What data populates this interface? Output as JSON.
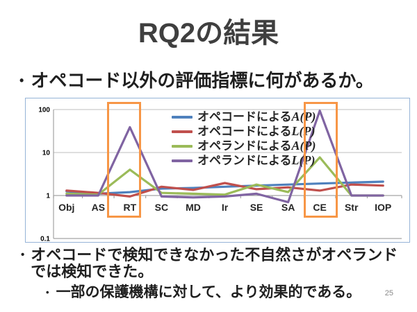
{
  "slide": {
    "title": "RQ2の結果",
    "bullet_char": "•",
    "bullet1": "オペコード以外の評価指標に何があるか。",
    "bullet2": "オペコードで検知できなかった不自然さがオペランドでは検知できた。",
    "bullet3": "一部の保護機構に対して、より効果的である。",
    "page_number": "25"
  },
  "chart_data": {
    "type": "line",
    "y_scale": "log",
    "ylim": [
      0.1,
      100
    ],
    "y_ticks": [
      "100",
      "10",
      "1",
      "0.1"
    ],
    "y_tick_values": [
      100,
      10,
      1,
      0.1
    ],
    "grid": true,
    "legend_position": "top-center-inside",
    "categories": [
      "Obj",
      "AS",
      "RT",
      "SC",
      "MD",
      "Ir",
      "SE",
      "SA",
      "CE",
      "Str",
      "IOP"
    ],
    "series": [
      {
        "name": "オペコードによるA(P)",
        "label_prefix": "オペコードによる",
        "label_metric": "A(P)",
        "color": "#4F81BD",
        "values": [
          1.25,
          1.1,
          1.2,
          1.45,
          1.5,
          1.6,
          1.7,
          1.8,
          1.9,
          2.0,
          2.1
        ]
      },
      {
        "name": "オペコードによるL(P)",
        "label_prefix": "オペコードによる",
        "label_metric": "L(P)",
        "color": "#C0504D",
        "values": [
          1.3,
          1.15,
          0.95,
          1.6,
          1.35,
          1.95,
          1.4,
          1.55,
          1.3,
          1.8,
          1.7
        ]
      },
      {
        "name": "オペランドによるA(P)",
        "label_prefix": "オペランドによる",
        "label_metric": "A(P)",
        "color": "#9BBB59",
        "values": [
          1.1,
          1.05,
          4.0,
          1.15,
          1.1,
          1.05,
          1.8,
          1.2,
          7.7,
          1.0,
          1.0
        ]
      },
      {
        "name": "オペランドによるL(P)",
        "label_prefix": "オペランドによる",
        "label_metric": "L(P)",
        "color": "#8064A2",
        "values": [
          1.0,
          1.0,
          39,
          0.95,
          0.9,
          0.95,
          1.1,
          0.7,
          94,
          1.0,
          1.0
        ]
      }
    ],
    "highlights": [
      {
        "category": "RT",
        "color": "#F79646"
      },
      {
        "category": "CE",
        "color": "#F79646"
      }
    ]
  }
}
